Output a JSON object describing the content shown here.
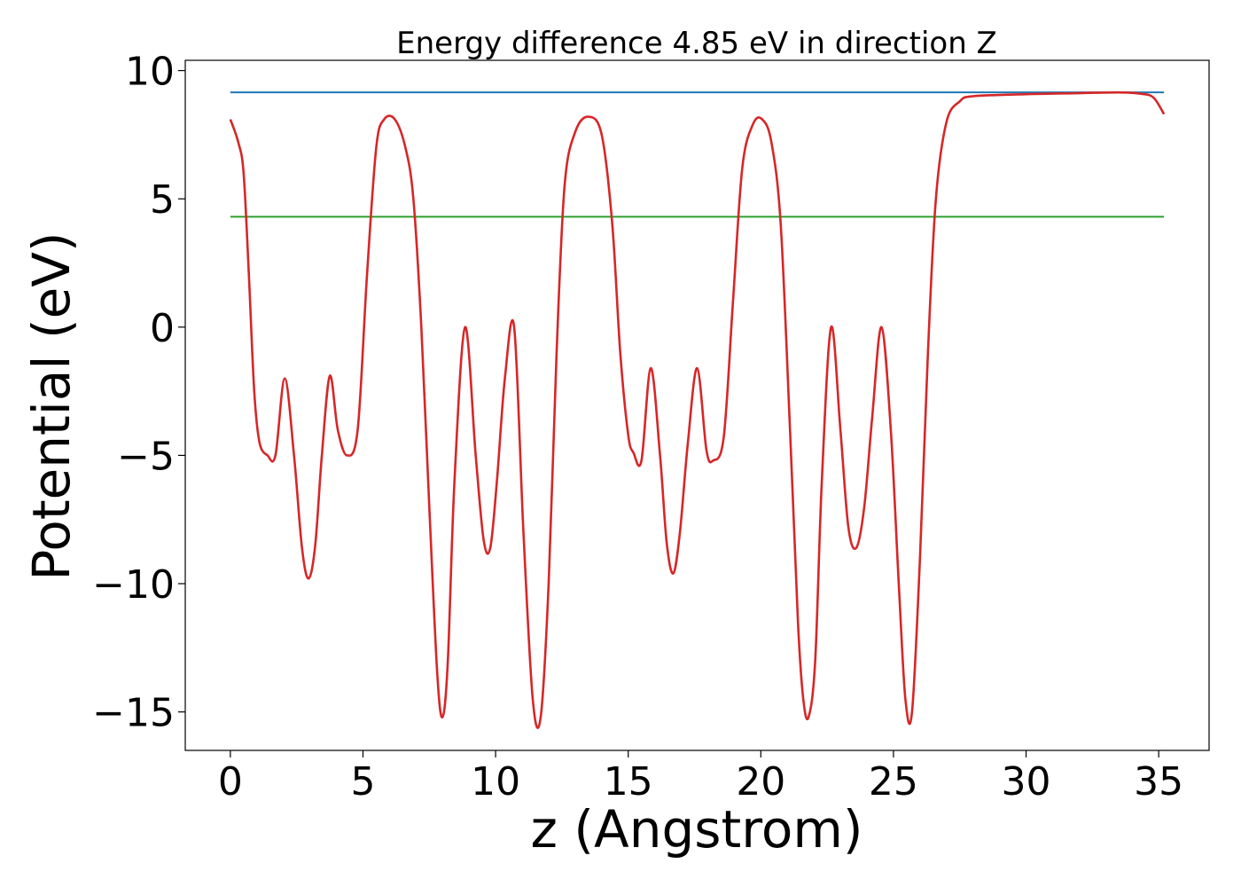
{
  "chart_data": {
    "type": "line",
    "title": "Energy difference 4.85 eV in direction Z",
    "xlabel": "z (Angstrom)",
    "ylabel": "Potential (eV)",
    "xlim": [
      -1.7,
      36.9
    ],
    "ylim": [
      -16.5,
      10.4
    ],
    "x_ticks": [
      0,
      5,
      10,
      15,
      20,
      25,
      30,
      35
    ],
    "y_ticks": [
      10,
      5,
      0,
      -5,
      -10,
      -15
    ],
    "x_tick_labels": [
      "0",
      "5",
      "10",
      "15",
      "20",
      "25",
      "30",
      "35"
    ],
    "y_tick_labels": [
      "10",
      "5",
      "0",
      "−5",
      "−10",
      "−15"
    ],
    "grid": false,
    "series": [
      {
        "color": "#d62728",
        "x": [
          0,
          0.3,
          0.5,
          0.7,
          0.9,
          1.1,
          1.4,
          1.7,
          2.05,
          2.4,
          2.7,
          2.95,
          3.2,
          3.45,
          3.75,
          4.05,
          4.4,
          4.8,
          5.15,
          5.5,
          5.8,
          6.2,
          6.6,
          6.9,
          7.2,
          7.5,
          7.8,
          8.0,
          8.2,
          8.45,
          8.85,
          9.25,
          9.55,
          9.8,
          10.05,
          10.35,
          10.7,
          11.05,
          11.4,
          11.7,
          12.0,
          12.3,
          12.6,
          13.0,
          13.5,
          14.0,
          14.4,
          14.7,
          15.0,
          15.2,
          15.5,
          15.85,
          16.2,
          16.45,
          16.7,
          16.95,
          17.25,
          17.6,
          17.95,
          18.2,
          18.6,
          18.95,
          19.3,
          19.7,
          20.05,
          20.4,
          20.75,
          21.1,
          21.4,
          21.6,
          21.8,
          22.05,
          22.3,
          22.65,
          23.0,
          23.3,
          23.6,
          23.9,
          24.2,
          24.55,
          24.9,
          25.2,
          25.45,
          25.7,
          26.0,
          26.3,
          26.6,
          27.0,
          27.5,
          28.0,
          30.0,
          32.0,
          33.5,
          34.3,
          34.8,
          35.2
        ],
        "values": [
          8.1,
          7.2,
          6.0,
          2.0,
          -2.5,
          -4.5,
          -5.0,
          -5.0,
          -2.0,
          -5.0,
          -8.6,
          -9.8,
          -8.5,
          -5.0,
          -1.9,
          -4.0,
          -5.0,
          -4.0,
          2.0,
          7.0,
          8.1,
          8.1,
          7.0,
          5.0,
          0.0,
          -7.0,
          -13.5,
          -15.2,
          -13.0,
          -6.0,
          0.0,
          -5.0,
          -8.3,
          -8.6,
          -6.0,
          -2.0,
          0.0,
          -8.0,
          -14.5,
          -15.2,
          -10.0,
          -1.0,
          5.5,
          7.6,
          8.2,
          7.5,
          4.0,
          -1.0,
          -4.2,
          -4.9,
          -5.2,
          -1.6,
          -5.0,
          -8.4,
          -9.6,
          -8.0,
          -4.5,
          -1.6,
          -4.8,
          -5.2,
          -4.3,
          1.0,
          6.2,
          7.9,
          8.1,
          7.2,
          4.0,
          -4.0,
          -11.5,
          -14.5,
          -15.2,
          -13.0,
          -6.0,
          0.0,
          -4.0,
          -7.8,
          -8.6,
          -7.0,
          -3.5,
          0.0,
          -4.0,
          -10.0,
          -14.5,
          -15.0,
          -9.0,
          -1.0,
          5.0,
          8.0,
          8.8,
          9.0,
          9.08,
          9.12,
          9.15,
          9.1,
          8.95,
          8.3
        ]
      },
      {
        "color": "#1f77b4",
        "x": [
          0,
          35.2
        ],
        "values": [
          9.15,
          9.15
        ]
      },
      {
        "color": "#2ca02c",
        "x": [
          0,
          35.2
        ],
        "values": [
          4.3,
          4.3
        ]
      }
    ]
  }
}
